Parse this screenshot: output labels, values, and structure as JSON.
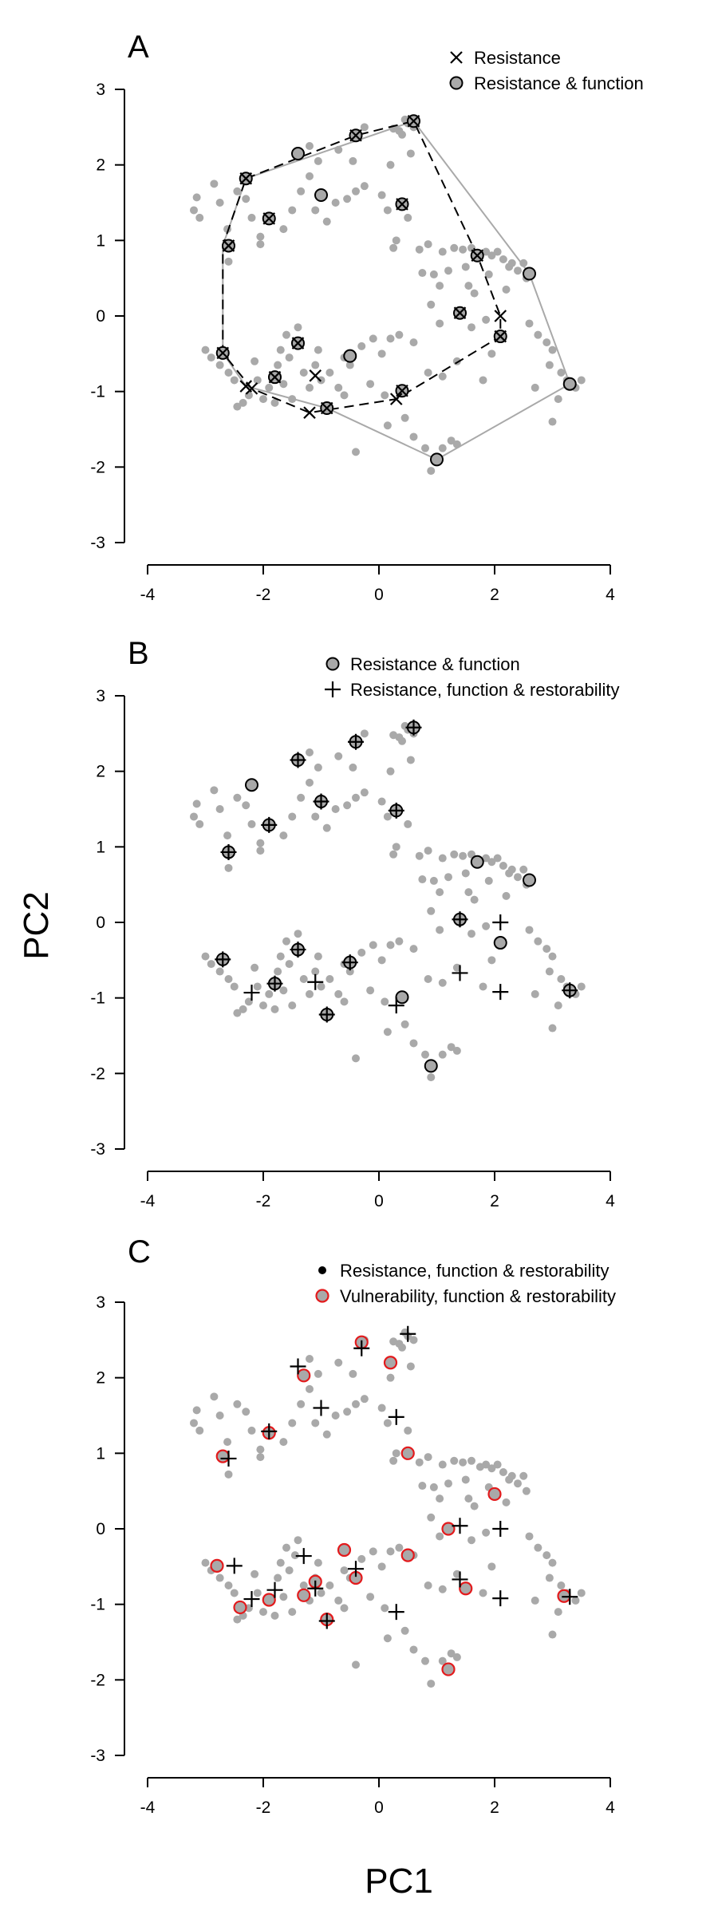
{
  "figure": {
    "xlabel": "PC1",
    "ylabel": "PC2",
    "colors": {
      "background": "#ffffff",
      "points": "#a9a9a9",
      "hull": "#a9a9a9",
      "mark": "#000000",
      "vulnerability": "#e31a1c"
    }
  },
  "chart_data": [
    {
      "type": "scatter",
      "panel": "A",
      "xlim": [
        -4,
        4
      ],
      "ylim": [
        -3,
        3
      ],
      "xticks": [
        -4,
        -2,
        0,
        2,
        4
      ],
      "yticks": [
        -3,
        -2,
        -1,
        0,
        1,
        2,
        3
      ],
      "grid": false,
      "legend_position": "top-right",
      "legend": [
        {
          "marker": "cross",
          "label": "Resistance"
        },
        {
          "marker": "circle-gray",
          "label": "Resistance & function"
        }
      ],
      "series": [
        {
          "name": "Resistance",
          "marker": "cross",
          "points": [
            [
              -2.6,
              0.93
            ],
            [
              -2.7,
              -0.49
            ],
            [
              -2.3,
              1.82
            ],
            [
              -1.9,
              1.29
            ],
            [
              -2.3,
              -0.93
            ],
            [
              -2.2,
              -0.96
            ],
            [
              -1.8,
              -0.81
            ],
            [
              -1.4,
              -0.36
            ],
            [
              -1.1,
              -0.79
            ],
            [
              -1.2,
              -1.28
            ],
            [
              -0.9,
              -1.22
            ],
            [
              -0.4,
              2.39
            ],
            [
              0.3,
              -1.1
            ],
            [
              0.4,
              -0.99
            ],
            [
              0.4,
              1.48
            ],
            [
              0.6,
              2.58
            ],
            [
              1.4,
              0.04
            ],
            [
              1.7,
              0.8
            ],
            [
              2.1,
              -0.27
            ],
            [
              2.1,
              0.0
            ]
          ]
        },
        {
          "name": "Resistance & function",
          "marker": "circle-gray",
          "points": [
            [
              -2.6,
              0.93
            ],
            [
              -2.7,
              -0.49
            ],
            [
              -2.3,
              1.82
            ],
            [
              -1.9,
              1.29
            ],
            [
              -1.8,
              -0.81
            ],
            [
              -1.4,
              2.15
            ],
            [
              -1.4,
              -0.36
            ],
            [
              -1.0,
              1.6
            ],
            [
              -0.9,
              -1.22
            ],
            [
              -0.5,
              -0.53
            ],
            [
              -0.4,
              2.39
            ],
            [
              0.4,
              -0.99
            ],
            [
              0.4,
              1.48
            ],
            [
              0.6,
              2.58
            ],
            [
              1.0,
              -1.9
            ],
            [
              1.4,
              0.04
            ],
            [
              1.7,
              0.8
            ],
            [
              2.1,
              -0.27
            ],
            [
              2.6,
              0.56
            ],
            [
              3.3,
              -0.9
            ]
          ]
        }
      ],
      "hulls": [
        {
          "style": "solid",
          "points": [
            [
              -2.7,
              0.93
            ],
            [
              -2.3,
              1.82
            ],
            [
              0.6,
              2.58
            ],
            [
              2.6,
              0.56
            ],
            [
              3.3,
              -0.9
            ],
            [
              1.0,
              -1.9
            ],
            [
              -0.9,
              -1.22
            ],
            [
              -2.3,
              -0.93
            ],
            [
              -2.7,
              -0.49
            ]
          ]
        },
        {
          "style": "dashed",
          "points": [
            [
              -2.3,
              1.82
            ],
            [
              -0.4,
              2.39
            ],
            [
              0.6,
              2.58
            ],
            [
              1.7,
              0.8
            ],
            [
              2.1,
              0.0
            ],
            [
              2.1,
              -0.27
            ],
            [
              0.3,
              -1.1
            ],
            [
              -1.2,
              -1.28
            ],
            [
              -2.2,
              -0.96
            ],
            [
              -2.7,
              -0.49
            ],
            [
              -2.7,
              0.93
            ]
          ]
        }
      ]
    },
    {
      "type": "scatter",
      "panel": "B",
      "xlim": [
        -4,
        4
      ],
      "ylim": [
        -3,
        3
      ],
      "xticks": [
        -4,
        -2,
        0,
        2,
        4
      ],
      "yticks": [
        -3,
        -2,
        -1,
        0,
        1,
        2,
        3
      ],
      "grid": false,
      "legend_position": "top-right",
      "legend": [
        {
          "marker": "circle-gray",
          "label": "Resistance & function"
        },
        {
          "marker": "plus",
          "label": "Resistance, function & restorability"
        }
      ],
      "series": [
        {
          "name": "Resistance & function",
          "marker": "circle-gray",
          "points": [
            [
              -2.6,
              0.93
            ],
            [
              -2.7,
              -0.49
            ],
            [
              -2.2,
              1.82
            ],
            [
              -1.9,
              1.29
            ],
            [
              -1.8,
              -0.81
            ],
            [
              -1.4,
              2.15
            ],
            [
              -1.4,
              -0.36
            ],
            [
              -1.0,
              1.6
            ],
            [
              -0.9,
              -1.22
            ],
            [
              -0.5,
              -0.53
            ],
            [
              -0.4,
              2.39
            ],
            [
              0.4,
              -0.99
            ],
            [
              0.3,
              1.48
            ],
            [
              0.6,
              2.58
            ],
            [
              0.9,
              -1.9
            ],
            [
              1.4,
              0.04
            ],
            [
              1.7,
              0.8
            ],
            [
              2.1,
              -0.27
            ],
            [
              2.6,
              0.56
            ],
            [
              3.3,
              -0.9
            ]
          ]
        },
        {
          "name": "Resistance, function & restorability",
          "marker": "plus",
          "points": [
            [
              -2.6,
              0.93
            ],
            [
              -2.7,
              -0.49
            ],
            [
              -1.9,
              1.29
            ],
            [
              -2.2,
              -0.93
            ],
            [
              -1.8,
              -0.81
            ],
            [
              -1.4,
              2.15
            ],
            [
              -1.4,
              -0.36
            ],
            [
              -1.1,
              -0.79
            ],
            [
              -1.0,
              1.6
            ],
            [
              -0.9,
              -1.22
            ],
            [
              -0.5,
              -0.53
            ],
            [
              -0.4,
              2.39
            ],
            [
              0.3,
              -1.1
            ],
            [
              0.3,
              1.48
            ],
            [
              0.6,
              2.58
            ],
            [
              1.4,
              0.04
            ],
            [
              1.4,
              -0.67
            ],
            [
              2.1,
              0.0
            ],
            [
              2.1,
              -0.92
            ],
            [
              3.3,
              -0.9
            ]
          ]
        }
      ]
    },
    {
      "type": "scatter",
      "panel": "C",
      "xlim": [
        -4,
        4
      ],
      "ylim": [
        -3,
        3
      ],
      "xticks": [
        -4,
        -2,
        0,
        2,
        4
      ],
      "yticks": [
        -3,
        -2,
        -1,
        0,
        1,
        2,
        3
      ],
      "grid": false,
      "legend_position": "top-right",
      "legend": [
        {
          "marker": "dot-black",
          "label": "Resistance, function & restorability"
        },
        {
          "marker": "circle-red",
          "label": "Vulnerability, function & restorability"
        }
      ],
      "series": [
        {
          "name": "Resistance, function & restorability",
          "marker": "plus",
          "points": [
            [
              -2.6,
              0.93
            ],
            [
              -2.5,
              -0.49
            ],
            [
              -1.9,
              1.29
            ],
            [
              -2.2,
              -0.93
            ],
            [
              -1.8,
              -0.81
            ],
            [
              -1.4,
              2.15
            ],
            [
              -1.3,
              -0.36
            ],
            [
              -1.1,
              -0.79
            ],
            [
              -1.0,
              1.6
            ],
            [
              -0.9,
              -1.22
            ],
            [
              -0.4,
              -0.53
            ],
            [
              -0.3,
              2.39
            ],
            [
              0.3,
              -1.1
            ],
            [
              0.3,
              1.48
            ],
            [
              0.5,
              2.58
            ],
            [
              1.4,
              0.04
            ],
            [
              1.4,
              -0.67
            ],
            [
              2.1,
              0.0
            ],
            [
              2.1,
              -0.92
            ],
            [
              3.3,
              -0.9
            ]
          ]
        },
        {
          "name": "Vulnerability, function & restorability",
          "marker": "circle-red",
          "points": [
            [
              -2.7,
              0.96
            ],
            [
              -1.9,
              1.27
            ],
            [
              -1.3,
              2.03
            ],
            [
              -0.3,
              2.47
            ],
            [
              0.2,
              2.2
            ],
            [
              0.5,
              1.0
            ],
            [
              2.0,
              0.46
            ],
            [
              1.2,
              0.0
            ],
            [
              0.5,
              -0.35
            ],
            [
              -2.8,
              -0.49
            ],
            [
              -2.4,
              -1.04
            ],
            [
              -1.9,
              -0.94
            ],
            [
              -1.3,
              -0.88
            ],
            [
              -1.1,
              -0.7
            ],
            [
              -0.6,
              -0.28
            ],
            [
              -0.4,
              -0.65
            ],
            [
              -0.9,
              -1.2
            ],
            [
              1.5,
              -0.79
            ],
            [
              3.2,
              -0.89
            ],
            [
              1.2,
              -1.86
            ]
          ]
        }
      ]
    }
  ],
  "background_points": [
    [
      -3.2,
      1.4
    ],
    [
      -3.15,
      1.57
    ],
    [
      -3.1,
      1.3
    ],
    [
      -2.85,
      1.75
    ],
    [
      -2.75,
      1.5
    ],
    [
      -2.62,
      1.15
    ],
    [
      -2.45,
      1.65
    ],
    [
      -2.3,
      1.55
    ],
    [
      -2.2,
      1.3
    ],
    [
      -2.05,
      1.05
    ],
    [
      -2.6,
      0.72
    ],
    [
      -2.05,
      0.95
    ],
    [
      -1.65,
      1.15
    ],
    [
      -1.5,
      1.4
    ],
    [
      -1.35,
      1.65
    ],
    [
      -1.2,
      1.85
    ],
    [
      -1.1,
      1.4
    ],
    [
      -0.9,
      1.25
    ],
    [
      -0.75,
      1.5
    ],
    [
      -0.55,
      1.55
    ],
    [
      -0.4,
      1.65
    ],
    [
      -0.25,
      1.72
    ],
    [
      0.05,
      1.6
    ],
    [
      0.15,
      1.4
    ],
    [
      0.3,
      1.0
    ],
    [
      0.5,
      1.3
    ],
    [
      -1.2,
      2.25
    ],
    [
      -1.05,
      2.05
    ],
    [
      -0.7,
      2.2
    ],
    [
      -0.45,
      2.05
    ],
    [
      -0.25,
      2.5
    ],
    [
      0.2,
      2.0
    ],
    [
      0.25,
      2.48
    ],
    [
      0.35,
      2.45
    ],
    [
      0.4,
      2.4
    ],
    [
      0.45,
      2.6
    ],
    [
      0.5,
      2.55
    ],
    [
      0.6,
      2.5
    ],
    [
      0.55,
      2.15
    ],
    [
      0.25,
      0.9
    ],
    [
      0.7,
      0.88
    ],
    [
      0.75,
      0.57
    ],
    [
      0.85,
      0.95
    ],
    [
      0.95,
      0.55
    ],
    [
      1.05,
      0.4
    ],
    [
      1.2,
      0.6
    ],
    [
      1.1,
      0.85
    ],
    [
      1.3,
      0.9
    ],
    [
      1.45,
      0.88
    ],
    [
      1.5,
      0.65
    ],
    [
      1.55,
      0.4
    ],
    [
      1.6,
      0.9
    ],
    [
      1.75,
      0.82
    ],
    [
      1.85,
      0.85
    ],
    [
      1.9,
      0.55
    ],
    [
      1.95,
      0.8
    ],
    [
      2.05,
      0.85
    ],
    [
      2.15,
      0.75
    ],
    [
      2.25,
      0.65
    ],
    [
      2.3,
      0.7
    ],
    [
      2.4,
      0.6
    ],
    [
      2.5,
      0.7
    ],
    [
      2.55,
      0.5
    ],
    [
      2.2,
      0.35
    ],
    [
      1.65,
      0.3
    ],
    [
      1.05,
      -0.1
    ],
    [
      0.9,
      0.15
    ],
    [
      1.6,
      -0.15
    ],
    [
      1.85,
      -0.05
    ],
    [
      2.6,
      -0.1
    ],
    [
      2.75,
      -0.25
    ],
    [
      2.9,
      -0.35
    ],
    [
      3.0,
      -0.45
    ],
    [
      2.95,
      -0.65
    ],
    [
      3.15,
      -0.75
    ],
    [
      3.25,
      -0.85
    ],
    [
      3.4,
      -0.95
    ],
    [
      3.5,
      -0.85
    ],
    [
      3.1,
      -1.1
    ],
    [
      3.0,
      -1.4
    ],
    [
      2.7,
      -0.95
    ],
    [
      1.8,
      -0.85
    ],
    [
      1.95,
      -0.5
    ],
    [
      1.35,
      -0.6
    ],
    [
      1.1,
      -0.8
    ],
    [
      0.85,
      -0.75
    ],
    [
      0.6,
      -0.35
    ],
    [
      0.35,
      -0.25
    ],
    [
      0.2,
      -0.3
    ],
    [
      0.05,
      -0.5
    ],
    [
      -0.1,
      -0.3
    ],
    [
      -0.3,
      -0.4
    ],
    [
      -0.5,
      -0.65
    ],
    [
      -0.6,
      -0.55
    ],
    [
      -0.7,
      -0.95
    ],
    [
      -0.85,
      -0.75
    ],
    [
      -1.0,
      -0.85
    ],
    [
      -1.1,
      -0.65
    ],
    [
      -1.2,
      -0.95
    ],
    [
      -1.3,
      -0.75
    ],
    [
      -1.45,
      -0.35
    ],
    [
      -1.55,
      -0.55
    ],
    [
      -1.65,
      -0.9
    ],
    [
      -1.75,
      -0.65
    ],
    [
      -1.9,
      -0.95
    ],
    [
      -2.0,
      -1.1
    ],
    [
      -2.1,
      -0.85
    ],
    [
      -2.25,
      -1.05
    ],
    [
      -2.35,
      -1.15
    ],
    [
      -2.5,
      -0.85
    ],
    [
      -2.6,
      -0.75
    ],
    [
      -2.75,
      -0.65
    ],
    [
      -2.9,
      -0.55
    ],
    [
      -3.0,
      -0.45
    ],
    [
      -2.15,
      -0.6
    ],
    [
      -1.7,
      -0.45
    ],
    [
      -1.6,
      -0.25
    ],
    [
      -1.4,
      -0.15
    ],
    [
      -1.05,
      -0.45
    ],
    [
      -0.6,
      -1.05
    ],
    [
      -0.15,
      -0.9
    ],
    [
      0.1,
      -1.05
    ],
    [
      0.15,
      -1.45
    ],
    [
      -0.4,
      -1.8
    ],
    [
      0.6,
      -1.6
    ],
    [
      0.8,
      -1.75
    ],
    [
      0.9,
      -2.05
    ],
    [
      1.1,
      -1.75
    ],
    [
      1.25,
      -1.65
    ],
    [
      1.35,
      -1.7
    ],
    [
      0.45,
      -1.35
    ],
    [
      -1.5,
      -1.1
    ],
    [
      -1.8,
      -1.15
    ],
    [
      -2.45,
      -1.2
    ]
  ]
}
